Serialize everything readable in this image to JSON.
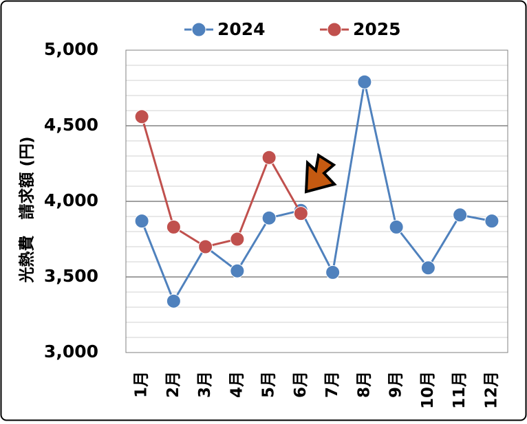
{
  "chart_data": {
    "type": "line",
    "y_label": "光熱費　請求額 (円)",
    "categories": [
      "1月",
      "2月",
      "3月",
      "4月",
      "5月",
      "6月",
      "7月",
      "8月",
      "9月",
      "10月",
      "11月",
      "12月"
    ],
    "series": [
      {
        "name": "2024",
        "color": "#4f81bd",
        "values": [
          3870,
          3340,
          3700,
          3540,
          3890,
          3940,
          3530,
          4790,
          3830,
          3560,
          3910,
          3870
        ]
      },
      {
        "name": "2025",
        "color": "#c0504d",
        "values": [
          4560,
          3830,
          3700,
          3750,
          4290,
          3920,
          null,
          null,
          null,
          null,
          null,
          null
        ]
      }
    ],
    "ylim": [
      3000,
      5000
    ],
    "yticks": [
      {
        "value": 3000,
        "label": "3,000"
      },
      {
        "value": 3500,
        "label": "3,500"
      },
      {
        "value": 4000,
        "label": "4,000"
      },
      {
        "value": 4500,
        "label": "4,500"
      },
      {
        "value": 5000,
        "label": "5,000"
      }
    ],
    "minor_yticks": [
      3100,
      3200,
      3300,
      3400,
      3600,
      3700,
      3800,
      3900,
      4100,
      4200,
      4300,
      4400,
      4600,
      4700,
      4800,
      4900
    ],
    "grid": true,
    "legend": "top"
  }
}
